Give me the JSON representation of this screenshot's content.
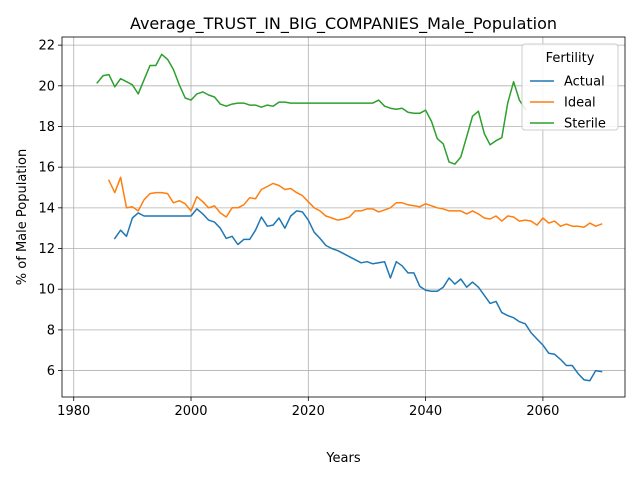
{
  "chart_data": {
    "type": "line",
    "title": "Average_TRUST_IN_BIG_COMPANIES_Male_Population",
    "xlabel": "Years",
    "ylabel": "% of Male Population",
    "xlim": [
      1978,
      2074
    ],
    "ylim": [
      4.7,
      22.4
    ],
    "xticks": [
      1980,
      2000,
      2020,
      2040,
      2060
    ],
    "yticks": [
      6,
      8,
      10,
      12,
      14,
      16,
      18,
      20,
      22
    ],
    "grid": true,
    "legend": {
      "title": "Fertility",
      "placement": "top-right"
    },
    "series": [
      {
        "name": "Actual",
        "color": "#1f77b4",
        "x": [
          1987,
          1988,
          1989,
          1990,
          1991,
          1992,
          1993,
          1994,
          1995,
          1996,
          1997,
          1998,
          1999,
          2000,
          2001,
          2002,
          2003,
          2004,
          2005,
          2006,
          2007,
          2008,
          2009,
          2010,
          2011,
          2012,
          2013,
          2014,
          2015,
          2016,
          2017,
          2018,
          2019,
          2020,
          2021,
          2022,
          2023,
          2024,
          2025,
          2026,
          2027,
          2028,
          2029,
          2030,
          2031,
          2032,
          2033,
          2034,
          2035,
          2036,
          2037,
          2038,
          2039,
          2040,
          2041,
          2042,
          2043,
          2044,
          2045,
          2046,
          2047,
          2048,
          2049,
          2050,
          2051,
          2052,
          2053,
          2054,
          2055,
          2056,
          2057,
          2058,
          2059,
          2060,
          2061,
          2062,
          2063,
          2064,
          2065,
          2066,
          2067,
          2068,
          2069,
          2070
        ],
        "values": [
          12.5,
          12.9,
          12.6,
          13.5,
          13.75,
          13.6,
          13.6,
          13.6,
          13.6,
          13.6,
          13.6,
          13.6,
          13.6,
          13.6,
          13.95,
          13.7,
          13.4,
          13.3,
          13.0,
          12.5,
          12.6,
          12.2,
          12.45,
          12.45,
          12.9,
          13.55,
          13.1,
          13.15,
          13.5,
          13.0,
          13.6,
          13.85,
          13.8,
          13.4,
          12.8,
          12.5,
          12.15,
          12.0,
          11.9,
          11.75,
          11.6,
          11.45,
          11.3,
          11.35,
          11.25,
          11.3,
          11.35,
          10.55,
          11.35,
          11.15,
          10.8,
          10.8,
          10.15,
          9.95,
          9.9,
          9.9,
          10.1,
          10.55,
          10.25,
          10.5,
          10.1,
          10.35,
          10.1,
          9.7,
          9.3,
          9.4,
          8.85,
          8.7,
          8.6,
          8.4,
          8.3,
          7.85,
          7.55,
          7.25,
          6.85,
          6.8,
          6.55,
          6.25,
          6.25,
          5.85,
          5.55,
          5.5,
          6.0,
          5.95
        ]
      },
      {
        "name": "Ideal",
        "color": "#ff7f0e",
        "x": [
          1986,
          1987,
          1988,
          1989,
          1990,
          1991,
          1992,
          1993,
          1994,
          1995,
          1996,
          1997,
          1998,
          1999,
          2000,
          2001,
          2002,
          2003,
          2004,
          2005,
          2006,
          2007,
          2008,
          2009,
          2010,
          2011,
          2012,
          2013,
          2014,
          2015,
          2016,
          2017,
          2018,
          2019,
          2020,
          2021,
          2022,
          2023,
          2024,
          2025,
          2026,
          2027,
          2028,
          2029,
          2030,
          2031,
          2032,
          2033,
          2034,
          2035,
          2036,
          2037,
          2038,
          2039,
          2040,
          2041,
          2042,
          2043,
          2044,
          2045,
          2046,
          2047,
          2048,
          2049,
          2050,
          2051,
          2052,
          2053,
          2054,
          2055,
          2056,
          2057,
          2058,
          2059,
          2060,
          2061,
          2062,
          2063,
          2064,
          2065,
          2066,
          2067,
          2068,
          2069,
          2070
        ],
        "values": [
          15.35,
          14.75,
          15.5,
          14.0,
          14.05,
          13.85,
          14.4,
          14.7,
          14.75,
          14.75,
          14.7,
          14.25,
          14.35,
          14.2,
          13.85,
          14.55,
          14.3,
          14.0,
          14.1,
          13.75,
          13.55,
          14.0,
          14.0,
          14.15,
          14.5,
          14.45,
          14.9,
          15.05,
          15.2,
          15.1,
          14.9,
          14.95,
          14.75,
          14.6,
          14.3,
          14.0,
          13.85,
          13.6,
          13.5,
          13.4,
          13.45,
          13.55,
          13.85,
          13.85,
          13.95,
          13.95,
          13.8,
          13.9,
          14.0,
          14.25,
          14.25,
          14.15,
          14.1,
          14.05,
          14.2,
          14.1,
          14.0,
          13.95,
          13.85,
          13.85,
          13.85,
          13.7,
          13.85,
          13.7,
          13.5,
          13.45,
          13.6,
          13.35,
          13.6,
          13.55,
          13.35,
          13.4,
          13.35,
          13.15,
          13.5,
          13.25,
          13.35,
          13.1,
          13.2,
          13.1,
          13.1,
          13.05,
          13.25,
          13.1,
          13.2
        ]
      },
      {
        "name": "Sterile",
        "color": "#2ca02c",
        "x": [
          1984,
          1985,
          1986,
          1987,
          1988,
          1989,
          1990,
          1991,
          1992,
          1993,
          1994,
          1995,
          1996,
          1997,
          1998,
          1999,
          2000,
          2001,
          2002,
          2003,
          2004,
          2005,
          2006,
          2007,
          2008,
          2009,
          2010,
          2011,
          2012,
          2013,
          2014,
          2015,
          2016,
          2017,
          2018,
          2019,
          2020,
          2021,
          2022,
          2023,
          2024,
          2025,
          2026,
          2027,
          2028,
          2029,
          2030,
          2031,
          2032,
          2033,
          2034,
          2035,
          2036,
          2037,
          2038,
          2039,
          2040,
          2041,
          2042,
          2043,
          2044,
          2045,
          2046,
          2047,
          2048,
          2049,
          2050,
          2051,
          2052,
          2053,
          2054,
          2055,
          2056,
          2057
        ],
        "values": [
          20.15,
          20.5,
          20.55,
          19.95,
          20.35,
          20.2,
          20.05,
          19.6,
          20.3,
          21.0,
          21.0,
          21.55,
          21.3,
          20.8,
          20.05,
          19.4,
          19.3,
          19.6,
          19.7,
          19.55,
          19.45,
          19.1,
          19.0,
          19.1,
          19.15,
          19.15,
          19.05,
          19.05,
          18.95,
          19.05,
          19.0,
          19.2,
          19.2,
          19.15,
          19.15,
          19.15,
          19.15,
          19.15,
          19.15,
          19.15,
          19.15,
          19.15,
          19.15,
          19.15,
          19.15,
          19.15,
          19.15,
          19.15,
          19.3,
          19.0,
          18.9,
          18.85,
          18.9,
          18.7,
          18.65,
          18.65,
          18.8,
          18.25,
          17.4,
          17.15,
          16.25,
          16.15,
          16.5,
          17.5,
          18.5,
          18.75,
          17.65,
          17.1,
          17.3,
          17.45,
          19.15,
          20.2,
          19.3,
          18.85
        ]
      }
    ]
  }
}
